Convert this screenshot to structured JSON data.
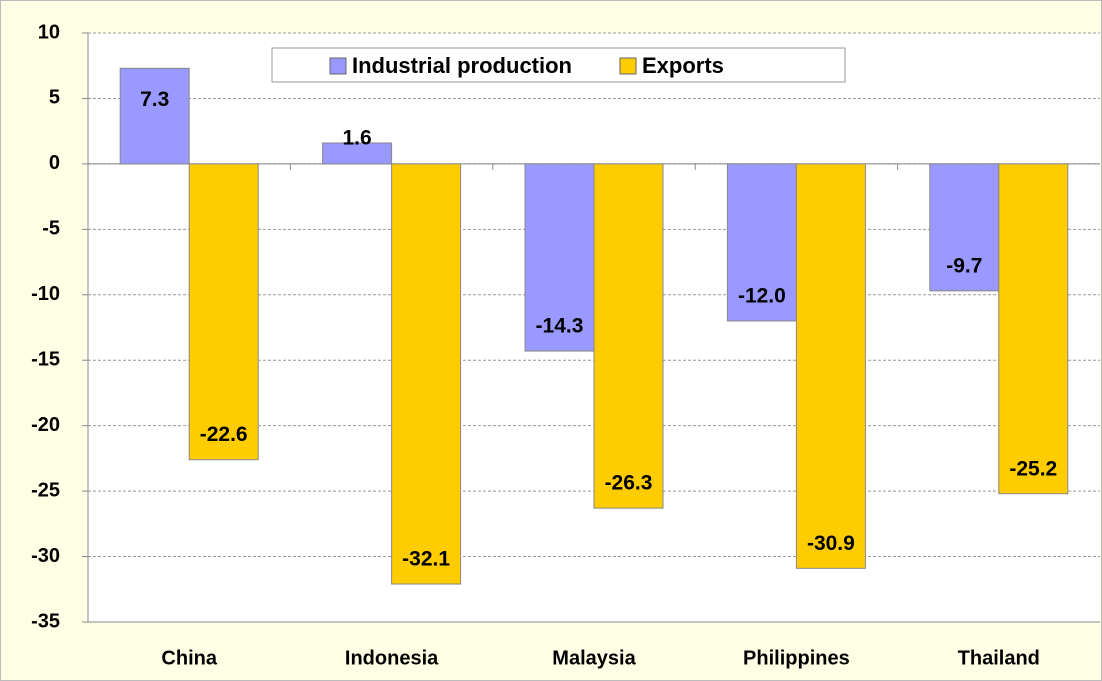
{
  "chart_data": {
    "type": "bar",
    "categories": [
      "China",
      "Indonesia",
      "Malaysia",
      "Philippines",
      "Thailand"
    ],
    "series": [
      {
        "name": "Industrial production",
        "color": "#9999ff",
        "values": [
          7.3,
          1.6,
          -14.3,
          -12.0,
          -9.7
        ],
        "value_labels": [
          "7.3",
          "1.6",
          "-14.3",
          "-12.0",
          "-9.7"
        ]
      },
      {
        "name": "Exports",
        "color": "#ffcc00",
        "values": [
          -22.6,
          -32.1,
          -26.3,
          -30.9,
          -25.2
        ]
      }
    ],
    "ylim": [
      -35,
      10
    ],
    "yticks": [
      10,
      5,
      0,
      -5,
      -10,
      -15,
      -20,
      -25,
      -30,
      -35
    ],
    "grid": true,
    "legend": "top"
  }
}
